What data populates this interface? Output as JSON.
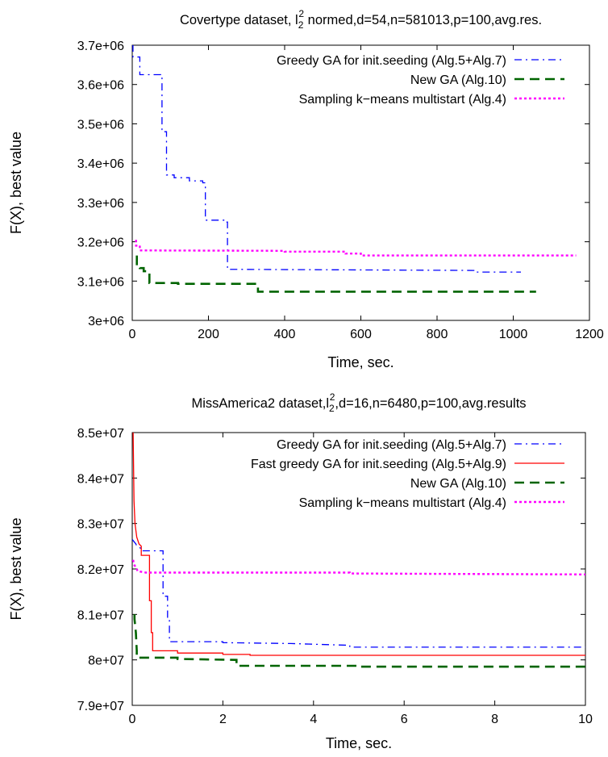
{
  "chart_data": [
    {
      "type": "line",
      "title": "Covertype dataset, l22 normed,d=54,n=581013,p=100,avg.res.",
      "title_parts": {
        "pre": "Covertype dataset, l",
        "sub": "2",
        "sup": "2",
        "post": " normed,d=54,n=581013,p=100,avg.res."
      },
      "xlabel": "Time, sec.",
      "ylabel": "F(X), best value",
      "xlim": [
        0,
        1200
      ],
      "ylim": [
        3000000,
        3700000
      ],
      "x_ticks": [
        0,
        200,
        400,
        600,
        800,
        1000,
        1200
      ],
      "x_tick_labels": [
        "0",
        "200",
        "400",
        "600",
        "800",
        "1000",
        "1200"
      ],
      "y_ticks": [
        3000000,
        3100000,
        3200000,
        3300000,
        3400000,
        3500000,
        3600000,
        3700000
      ],
      "y_tick_labels": [
        "3e+06",
        "3.1e+06",
        "3.2e+06",
        "3.3e+06",
        "3.4e+06",
        "3.5e+06",
        "3.6e+06",
        "3.7e+06"
      ],
      "legend_position": "top-right",
      "series": [
        {
          "name": "Greedy GA for init.seeding (Alg.5+Alg.7)",
          "color": "#0000ff",
          "style": "dashdot",
          "points": [
            [
              0,
              3700000
            ],
            [
              2,
              3700000
            ],
            [
              2,
              3670000
            ],
            [
              20,
              3670000
            ],
            [
              20,
              3625000
            ],
            [
              75,
              3625000
            ],
            [
              75,
              3620000
            ],
            [
              78,
              3620000
            ],
            [
              78,
              3480000
            ],
            [
              90,
              3480000
            ],
            [
              90,
              3370000
            ],
            [
              110,
              3370000
            ],
            [
              110,
              3363000
            ],
            [
              150,
              3363000
            ],
            [
              150,
              3355000
            ],
            [
              185,
              3355000
            ],
            [
              185,
              3350000
            ],
            [
              192,
              3350000
            ],
            [
              192,
              3255000
            ],
            [
              245,
              3255000
            ],
            [
              245,
              3250000
            ],
            [
              250,
              3250000
            ],
            [
              250,
              3130000
            ],
            [
              900,
              3127000
            ],
            [
              900,
              3123000
            ],
            [
              1020,
              3123000
            ]
          ]
        },
        {
          "name": "New GA (Alg.10)",
          "color": "#006400",
          "style": "dashed",
          "points": [
            [
              12,
              3165000
            ],
            [
              12,
              3140000
            ],
            [
              20,
              3140000
            ],
            [
              20,
              3133000
            ],
            [
              30,
              3133000
            ],
            [
              30,
              3125000
            ],
            [
              45,
              3125000
            ],
            [
              45,
              3095000
            ],
            [
              120,
              3095000
            ],
            [
              120,
              3093000
            ],
            [
              330,
              3093000
            ],
            [
              330,
              3073000
            ],
            [
              1060,
              3073000
            ]
          ]
        },
        {
          "name": "Sampling k−means multistart (Alg.4)",
          "color": "#ff00ff",
          "style": "dotted",
          "points": [
            [
              10,
              3205000
            ],
            [
              10,
              3190000
            ],
            [
              20,
              3190000
            ],
            [
              20,
              3178000
            ],
            [
              400,
              3177000
            ],
            [
              400,
              3175000
            ],
            [
              560,
              3175000
            ],
            [
              560,
              3170000
            ],
            [
              600,
              3170000
            ],
            [
              600,
              3165000
            ],
            [
              1165,
              3165000
            ]
          ]
        }
      ]
    },
    {
      "type": "line",
      "title": "MissAmerica2 dataset,l22,d=16,n=6480,p=100,avg.results",
      "title_parts": {
        "pre": "MissAmerica2 dataset,l",
        "sub": "2",
        "sup": "2",
        "post": ",d=16,n=6480,p=100,avg.results"
      },
      "xlabel": "Time, sec.",
      "ylabel": "F(X), best value",
      "xlim": [
        0,
        10
      ],
      "ylim": [
        79000000,
        85000000
      ],
      "x_ticks": [
        0,
        2,
        4,
        6,
        8,
        10
      ],
      "x_tick_labels": [
        "0",
        "2",
        "4",
        "6",
        "8",
        "10"
      ],
      "y_ticks": [
        79000000,
        80000000,
        81000000,
        82000000,
        83000000,
        84000000,
        85000000
      ],
      "y_tick_labels": [
        "7.9e+07",
        "8e+07",
        "8.1e+07",
        "8.2e+07",
        "8.3e+07",
        "8.4e+07",
        "8.5e+07"
      ],
      "legend_position": "top-right",
      "series": [
        {
          "name": "Greedy GA for init.seeding (Alg.5+Alg.7)",
          "color": "#0000ff",
          "style": "dashdot",
          "points": [
            [
              0,
              82650000
            ],
            [
              0.08,
              82550000
            ],
            [
              0.1,
              82500000
            ],
            [
              0.2,
              82450000
            ],
            [
              0.2,
              82400000
            ],
            [
              0.68,
              82400000
            ],
            [
              0.68,
              81400000
            ],
            [
              0.78,
              81400000
            ],
            [
              0.78,
              80900000
            ],
            [
              0.82,
              80900000
            ],
            [
              0.82,
              80400000
            ],
            [
              2.0,
              80400000
            ],
            [
              2.0,
              80380000
            ],
            [
              3.5,
              80360000
            ],
            [
              4.8,
              80320000
            ],
            [
              4.8,
              80280000
            ],
            [
              10,
              80280000
            ]
          ]
        },
        {
          "name": "Fast greedy GA for init.seeding (Alg.5+Alg.9)",
          "color": "#ff0000",
          "style": "solid",
          "points": [
            [
              0.02,
              85000000
            ],
            [
              0.04,
              83500000
            ],
            [
              0.06,
              83000000
            ],
            [
              0.1,
              82700000
            ],
            [
              0.15,
              82550000
            ],
            [
              0.2,
              82500000
            ],
            [
              0.2,
              82300000
            ],
            [
              0.38,
              82300000
            ],
            [
              0.38,
              81300000
            ],
            [
              0.42,
              81300000
            ],
            [
              0.42,
              80600000
            ],
            [
              0.45,
              80600000
            ],
            [
              0.45,
              80200000
            ],
            [
              1.0,
              80200000
            ],
            [
              1.0,
              80150000
            ],
            [
              2.0,
              80150000
            ],
            [
              2.0,
              80120000
            ],
            [
              2.6,
              80120000
            ],
            [
              2.6,
              80100000
            ],
            [
              10,
              80100000
            ]
          ]
        },
        {
          "name": "New GA (Alg.10)",
          "color": "#006400",
          "style": "dashed",
          "points": [
            [
              0.05,
              81000000
            ],
            [
              0.05,
              80900000
            ],
            [
              0.08,
              80600000
            ],
            [
              0.1,
              80200000
            ],
            [
              0.1,
              80050000
            ],
            [
              1.0,
              80050000
            ],
            [
              1.0,
              80020000
            ],
            [
              2.3,
              80000000
            ],
            [
              2.3,
              79870000
            ],
            [
              5.0,
              79870000
            ],
            [
              5.0,
              79850000
            ],
            [
              10,
              79850000
            ]
          ]
        },
        {
          "name": "Sampling k−means multistart (Alg.4)",
          "color": "#ff00ff",
          "style": "dotted",
          "points": [
            [
              0.02,
              82200000
            ],
            [
              0.04,
              82100000
            ],
            [
              0.1,
              82000000
            ],
            [
              0.12,
              81950000
            ],
            [
              0.3,
              81920000
            ],
            [
              4.8,
              81920000
            ],
            [
              4.8,
              81900000
            ],
            [
              10,
              81880000
            ]
          ]
        }
      ]
    }
  ]
}
